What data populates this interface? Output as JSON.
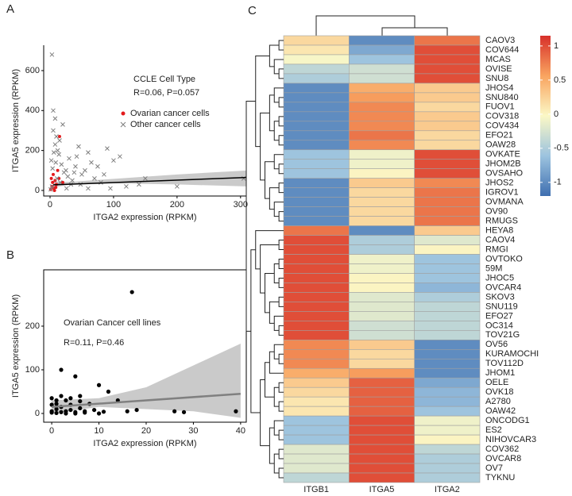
{
  "chart_data": [
    {
      "type": "scatter",
      "panel_label": "A",
      "x_label": "ITGA2 expression (RPKM)",
      "y_label": "ITGA5 expression (RPKM)",
      "legend_title": "CCLE Cell Type",
      "annotation": "R=0.06, P=0.057",
      "xlim": [
        -10,
        309
      ],
      "ylim": [
        -28,
        727
      ],
      "xticks": [
        0,
        100,
        200,
        300
      ],
      "yticks": [
        0,
        200,
        400,
        600
      ],
      "series": [
        {
          "name": "Ovarian cancer cells",
          "color": "#e31a1c",
          "marker": "circle",
          "x": [
            15,
            5,
            8,
            3,
            10,
            2,
            6,
            12,
            20,
            4,
            7,
            9,
            1,
            14
          ],
          "values": [
            270,
            80,
            50,
            20,
            30,
            60,
            10,
            100,
            40,
            40,
            0,
            15,
            5,
            60
          ]
        },
        {
          "name": "Other cancer cells",
          "color": "#7f7f7f",
          "marker": "x",
          "x": [
            3,
            5,
            8,
            20,
            5,
            10,
            15,
            45,
            90,
            60,
            110,
            100,
            150,
            200,
            305,
            120,
            140,
            95,
            80,
            30,
            40,
            25,
            50,
            70,
            60,
            35,
            12,
            8,
            2,
            18,
            22,
            28,
            6,
            4,
            33,
            55,
            65,
            75,
            85,
            42,
            16,
            11,
            3,
            26,
            48,
            38,
            1,
            9,
            14
          ],
          "values": [
            680,
            400,
            360,
            330,
            300,
            270,
            250,
            220,
            210,
            190,
            170,
            150,
            60,
            20,
            60,
            20,
            30,
            10,
            40,
            160,
            120,
            100,
            80,
            60,
            10,
            50,
            200,
            230,
            150,
            130,
            90,
            70,
            190,
            110,
            30,
            100,
            140,
            120,
            80,
            170,
            40,
            60,
            20,
            10,
            30,
            90,
            5,
            140,
            180
          ]
        }
      ],
      "fit": {
        "color": "#000000",
        "x": [
          5,
          310
        ],
        "values": [
          28,
          65
        ]
      },
      "band": {
        "color": "#bdbdbd",
        "x": [
          5,
          30,
          100,
          200,
          310
        ],
        "lower": [
          15,
          28,
          35,
          30,
          20
        ],
        "upper": [
          45,
          42,
          58,
          80,
          100
        ]
      }
    },
    {
      "type": "scatter",
      "panel_label": "B",
      "x_label": "ITGA2 expression (RPKM)",
      "y_label": "ITGA5 expression (RPKM)",
      "annotation_title": "Ovarian Cancer cell lines",
      "annotation": "R=0.11, P=0.46",
      "xlim": [
        -1.7,
        41.2
      ],
      "ylim": [
        -20,
        329
      ],
      "xticks": [
        0,
        10,
        20,
        30,
        40
      ],
      "yticks": [
        0,
        100,
        200
      ],
      "series": [
        {
          "color": "#000000",
          "marker": "circle",
          "x": [
            17,
            2,
            5,
            10,
            12,
            0,
            1,
            3,
            6,
            8,
            14,
            4,
            2,
            1,
            0,
            3,
            5,
            7,
            9,
            18,
            26,
            28,
            39,
            16,
            0,
            1,
            2,
            4,
            6,
            3,
            5,
            0,
            1,
            2,
            4,
            6,
            7,
            10,
            11
          ],
          "values": [
            278,
            100,
            85,
            65,
            50,
            35,
            30,
            30,
            28,
            22,
            30,
            20,
            15,
            10,
            5,
            5,
            3,
            5,
            8,
            8,
            5,
            3,
            5,
            5,
            2,
            1,
            3,
            8,
            12,
            0,
            0,
            20,
            22,
            40,
            35,
            40,
            2,
            0,
            4
          ]
        }
      ],
      "fit": {
        "color": "#808080",
        "x": [
          0,
          40
        ],
        "values": [
          15,
          45
        ]
      },
      "band": {
        "color": "#bdbdbd",
        "x": [
          0,
          10,
          20,
          30,
          40
        ],
        "lower": [
          0,
          15,
          10,
          5,
          -10
        ],
        "upper": [
          30,
          35,
          60,
          110,
          160
        ]
      }
    },
    {
      "type": "heatmap",
      "panel_label": "C",
      "columns": [
        "ITGB1",
        "ITGA5",
        "ITGA2"
      ],
      "rows": [
        "CAOV3",
        "COV644",
        "MCAS",
        "OVISE",
        "SNU8",
        "JHOS4",
        "SNU840",
        "FUOV1",
        "COV318",
        "COV434",
        "EFO21",
        "OAW28",
        "OVKATE",
        "JHOM2B",
        "OVSAHO",
        "JHOS2",
        "IGROV1",
        "OVMANA",
        "OV90",
        "RMUGS",
        "HEYA8",
        "CAOV4",
        "RMGI",
        "OVTOKO",
        "59M",
        "JHOC5",
        "OVCAR4",
        "SKOV3",
        "SNU119",
        "EFO27",
        "OC314",
        "TOV21G",
        "OV56",
        "KURAMOCHI",
        "TOV112D",
        "JHOM1",
        "OELE",
        "OVK18",
        "A2780",
        "OAW42",
        "ONCODG1",
        "ES2",
        "NIHOVCAR3",
        "COV362",
        "OVCAR8",
        "OV7",
        "TYKNU"
      ],
      "values": [
        [
          0.2,
          -1,
          0.8
        ],
        [
          0.1,
          -0.8,
          1
        ],
        [
          -0.05,
          -0.6,
          1
        ],
        [
          -0.4,
          -0.3,
          1
        ],
        [
          -0.5,
          -0.3,
          1
        ],
        [
          -1,
          0.5,
          0.3
        ],
        [
          -1,
          0.6,
          0.3
        ],
        [
          -1,
          0.7,
          0.2
        ],
        [
          -1,
          0.7,
          0.3
        ],
        [
          -1,
          0.7,
          0.3
        ],
        [
          -1,
          0.8,
          0.2
        ],
        [
          -1,
          0.7,
          0.2
        ],
        [
          -0.6,
          -0.1,
          1
        ],
        [
          -0.6,
          -0.1,
          1
        ],
        [
          -0.6,
          0,
          1
        ],
        [
          -1,
          0.3,
          0.7
        ],
        [
          -1,
          0.2,
          0.8
        ],
        [
          -1,
          0.2,
          0.8
        ],
        [
          -1,
          0.2,
          0.8
        ],
        [
          -1,
          0.2,
          0.8
        ],
        [
          0.8,
          -1,
          0.3
        ],
        [
          1,
          -0.5,
          -0.2
        ],
        [
          1,
          -0.5,
          0
        ],
        [
          1,
          -0.1,
          -0.6
        ],
        [
          1,
          -0.1,
          -0.6
        ],
        [
          1,
          0,
          -0.6
        ],
        [
          1,
          0,
          -0.7
        ],
        [
          1,
          -0.2,
          -0.5
        ],
        [
          1,
          -0.2,
          -0.4
        ],
        [
          1,
          -0.2,
          -0.4
        ],
        [
          1,
          -0.3,
          -0.4
        ],
        [
          1,
          -0.3,
          -0.4
        ],
        [
          0.7,
          0.3,
          -1
        ],
        [
          0.7,
          0.2,
          -1
        ],
        [
          0.7,
          0.2,
          -1
        ],
        [
          0.5,
          0.6,
          -1
        ],
        [
          0.3,
          0.9,
          -0.8
        ],
        [
          0.2,
          0.9,
          -0.7
        ],
        [
          0.1,
          0.9,
          -0.7
        ],
        [
          0.1,
          0.9,
          -0.6
        ],
        [
          -0.6,
          1,
          -0.1
        ],
        [
          -0.6,
          1,
          -0.1
        ],
        [
          -0.6,
          1,
          0
        ],
        [
          -0.2,
          1,
          -0.4
        ],
        [
          -0.2,
          1,
          -0.5
        ],
        [
          -0.2,
          1,
          -0.5
        ],
        [
          -0.4,
          1,
          -0.5
        ]
      ],
      "zlim": [
        -1.2,
        1.15
      ],
      "zticks": [
        1,
        0.5,
        0,
        -0.5,
        -1
      ],
      "colors": [
        "#3f6fb0",
        "#9cc3df",
        "#fbf8c6",
        "#f9a460",
        "#d7302a"
      ]
    }
  ]
}
